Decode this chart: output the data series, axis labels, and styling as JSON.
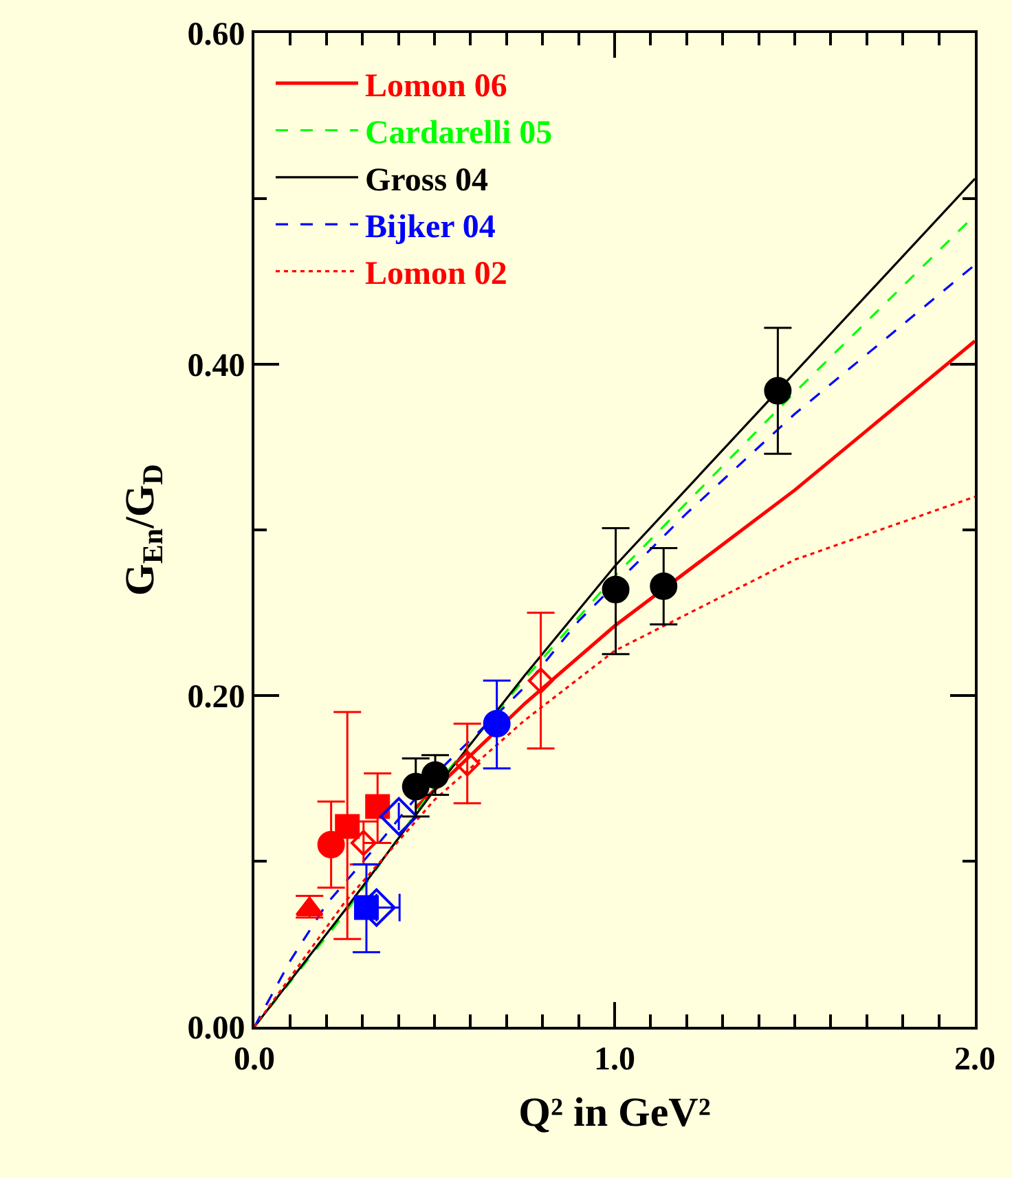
{
  "chart_data": {
    "type": "line",
    "xlabel": "Q² in GeV²",
    "ylabel": "G$_{En}$/G$_{D}$",
    "xlim": [
      0,
      2.0
    ],
    "ylim": [
      0,
      0.6
    ],
    "xticks": [
      {
        "value": 0,
        "label": "0.0"
      },
      {
        "value": 0.1,
        "label": null
      },
      {
        "value": 0.2,
        "label": null
      },
      {
        "value": 0.3,
        "label": null
      },
      {
        "value": 0.4,
        "label": null
      },
      {
        "value": 0.5,
        "label": null
      },
      {
        "value": 0.6,
        "label": null
      },
      {
        "value": 0.7,
        "label": null
      },
      {
        "value": 0.8,
        "label": null
      },
      {
        "value": 0.9,
        "label": null
      },
      {
        "value": 1.0,
        "label": "1.0"
      },
      {
        "value": 1.1,
        "label": null
      },
      {
        "value": 1.2,
        "label": null
      },
      {
        "value": 1.3,
        "label": null
      },
      {
        "value": 1.4,
        "label": null
      },
      {
        "value": 1.5,
        "label": null
      },
      {
        "value": 1.6,
        "label": null
      },
      {
        "value": 1.7,
        "label": null
      },
      {
        "value": 1.8,
        "label": null
      },
      {
        "value": 1.9,
        "label": null
      },
      {
        "value": 2.0,
        "label": "2.0"
      }
    ],
    "yticks": [
      {
        "value": 0,
        "label": "0.00"
      },
      {
        "value": 0.1,
        "label": null
      },
      {
        "value": 0.2,
        "label": "0.20"
      },
      {
        "value": 0.3,
        "label": null
      },
      {
        "value": 0.4,
        "label": "0.40"
      },
      {
        "value": 0.5,
        "label": null
      },
      {
        "value": 0.6,
        "label": "0.60"
      }
    ],
    "grid": false,
    "legend": "top left",
    "series": [
      {
        "name": "Lomon 06",
        "color": "#ff0000",
        "line_style": "solid",
        "x": [
          0.447,
          0.75,
          1.0,
          1.5,
          2.0
        ],
        "values": [
          0.132,
          0.195,
          0.242,
          0.324,
          0.414
        ]
      },
      {
        "name": "Cardarelli 05",
        "color": "#00ff00",
        "line_style": "dashed",
        "x": [
          0,
          0.25,
          0.5,
          0.75,
          1.0,
          1.5,
          2.0
        ],
        "values": [
          0,
          0.068,
          0.145,
          0.21,
          0.272,
          0.383,
          0.49
        ]
      },
      {
        "name": "Gross 04",
        "color": "#000000",
        "line_style": "solid",
        "x": [
          0,
          0.25,
          0.5,
          0.75,
          1.0,
          1.5,
          2.0
        ],
        "values": [
          0,
          0.07,
          0.143,
          0.212,
          0.278,
          0.395,
          0.512
        ]
      },
      {
        "name": "Bijker 04",
        "color": "#0000ff",
        "line_style": "dashed",
        "x": [
          0,
          0.1,
          0.2,
          0.35,
          0.5,
          0.75,
          0.9,
          1.2,
          1.5,
          2.0
        ],
        "values": [
          0,
          0.04,
          0.074,
          0.112,
          0.152,
          0.205,
          0.245,
          0.31,
          0.37,
          0.46
        ]
      },
      {
        "name": "Lomon 02",
        "color": "#ff0000",
        "line_style": "dotted",
        "x": [
          0,
          0.25,
          0.5,
          0.75,
          1.0,
          1.5,
          2.0
        ],
        "values": [
          0,
          0.075,
          0.137,
          0.185,
          0.227,
          0.282,
          0.32
        ]
      },
      {
        "type": "scatter",
        "color": "#ff0000",
        "marker": "triangle",
        "x": [
          0.153
        ],
        "values": [
          0.071
        ],
        "errors": [
          [
            0.066,
            0.079
          ]
        ]
      },
      {
        "type": "scatter",
        "color": "#ff0000",
        "marker": "circle",
        "x": [
          0.213
        ],
        "values": [
          0.11
        ],
        "errors": [
          [
            0.084,
            0.136
          ]
        ]
      },
      {
        "type": "scatter",
        "color": "#ff0000",
        "marker": "square",
        "x": [
          0.258,
          0.342
        ],
        "values": [
          0.121,
          0.133
        ],
        "errors": [
          [
            0.053,
            0.19
          ],
          [
            0.111,
            0.153
          ]
        ]
      },
      {
        "type": "scatter",
        "color": "#ff0000",
        "marker": "diamond",
        "x": [
          0.303,
          0.591,
          0.795
        ],
        "values": [
          0.111,
          0.159,
          0.209
        ],
        "errors": [
          [
            0.098,
            0.124
          ],
          [
            0.135,
            0.183
          ],
          [
            0.168,
            0.25
          ]
        ]
      },
      {
        "type": "scatter",
        "color": "#0000ff",
        "marker": "square",
        "x": [
          0.311
        ],
        "values": [
          0.072
        ],
        "errors": [
          [
            0.045,
            0.098
          ]
        ]
      },
      {
        "type": "scatter",
        "color": "#0000ff",
        "marker": "diamond",
        "x": [
          0.339,
          0.401
        ],
        "values": [
          0.072,
          0.127
        ],
        "xerrors": [
          [
            0.339,
            0.403
          ],
          null
        ]
      },
      {
        "type": "scatter",
        "color": "#0000ff",
        "marker": "circle",
        "x": [
          0.673
        ],
        "values": [
          0.183
        ],
        "errors": [
          [
            0.156,
            0.209
          ]
        ]
      },
      {
        "type": "scatter",
        "color": "#000000",
        "marker": "circle",
        "x": [
          0.448,
          0.502,
          1.003,
          1.136,
          1.453
        ],
        "values": [
          0.145,
          0.152,
          0.264,
          0.266,
          0.384
        ],
        "errors": [
          [
            0.127,
            0.162
          ],
          [
            0.14,
            0.164
          ],
          [
            0.225,
            0.301
          ],
          [
            0.243,
            0.289
          ],
          [
            0.346,
            0.422
          ]
        ]
      }
    ]
  }
}
